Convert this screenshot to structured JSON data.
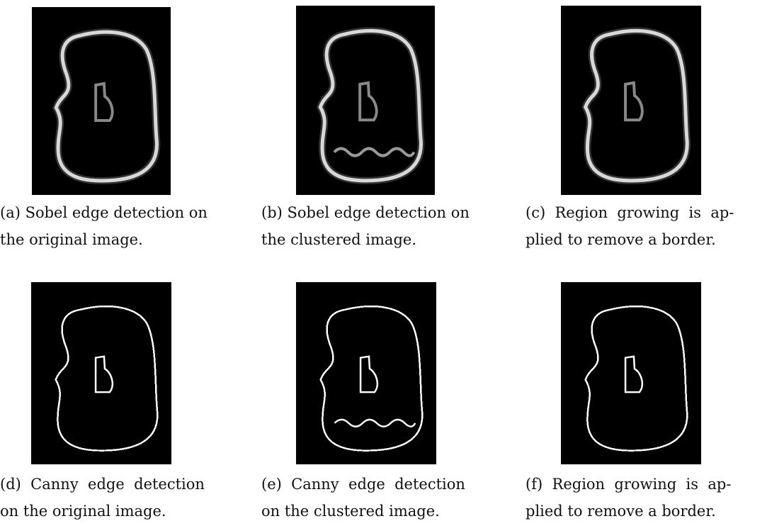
{
  "panels": [
    {
      "caption_lines": [
        "(a) Sobel edge detection on",
        "the original image."
      ]
    },
    {
      "caption_lines": [
        "(b) Sobel edge detection on",
        "the clustered image."
      ]
    },
    {
      "caption_lines": [
        "(c)  Region  growing  is  ap-",
        "plied to remove a border."
      ]
    },
    {
      "caption_lines": [
        "(d)  Canny  edge  detection",
        "on the original image."
      ]
    },
    {
      "caption_lines": [
        "(e)  Canny  edge  detection",
        "on the clustered image."
      ]
    },
    {
      "caption_lines": [
        "(f)  Region  growing  is  ap-",
        "plied to remove a border."
      ]
    }
  ]
}
